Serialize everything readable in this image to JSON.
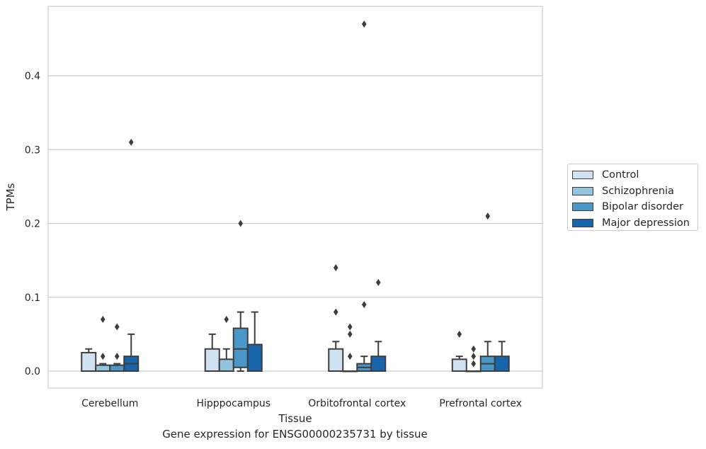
{
  "chart_data": {
    "type": "box",
    "xlabel": "Tissue",
    "ylabel": "TPMs",
    "ylim": [
      -0.023,
      0.495
    ],
    "yticks": [
      0.0,
      0.1,
      0.2,
      0.3,
      0.4
    ],
    "ytick_labels": [
      "0.0",
      "0.1",
      "0.2",
      "0.3",
      "0.4"
    ],
    "grid": true,
    "legend_placement": "right",
    "categories": [
      "Cerebellum",
      "Hipppocampus",
      "Orbitofrontal cortex",
      "Prefrontal cortex"
    ],
    "series": [
      {
        "name": "Control",
        "color": "#d0e1f2",
        "boxes": [
          {
            "whislo": 0.0,
            "q1": 0.0,
            "med": 0.0,
            "q3": 0.025,
            "whishi": 0.03,
            "fliers": []
          },
          {
            "whislo": 0.0,
            "q1": 0.0,
            "med": 0.0,
            "q3": 0.03,
            "whishi": 0.05,
            "fliers": []
          },
          {
            "whislo": 0.0,
            "q1": 0.0,
            "med": 0.0,
            "q3": 0.03,
            "whishi": 0.04,
            "fliers": [
              0.14,
              0.08
            ]
          },
          {
            "whislo": 0.0,
            "q1": 0.0,
            "med": 0.0,
            "q3": 0.016,
            "whishi": 0.02,
            "fliers": [
              0.05
            ]
          }
        ]
      },
      {
        "name": "Schizophrenia",
        "color": "#94c4df",
        "boxes": [
          {
            "whislo": 0.0,
            "q1": 0.0,
            "med": 0.0,
            "q3": 0.008,
            "whishi": 0.01,
            "fliers": [
              0.07,
              0.02
            ]
          },
          {
            "whislo": 0.0,
            "q1": 0.0,
            "med": 0.0,
            "q3": 0.016,
            "whishi": 0.03,
            "fliers": [
              0.07
            ]
          },
          {
            "whislo": 0.0,
            "q1": 0.0,
            "med": 0.0,
            "q3": 0.0,
            "whishi": 0.0,
            "fliers": [
              0.06,
              0.05,
              0.02
            ]
          },
          {
            "whislo": 0.0,
            "q1": 0.0,
            "med": 0.0,
            "q3": 0.0,
            "whishi": 0.0,
            "fliers": [
              0.03,
              0.02,
              0.01
            ]
          }
        ]
      },
      {
        "name": "Bipolar disorder",
        "color": "#4a98c9",
        "boxes": [
          {
            "whislo": 0.0,
            "q1": 0.0,
            "med": 0.0,
            "q3": 0.008,
            "whishi": 0.01,
            "fliers": [
              0.06,
              0.02
            ]
          },
          {
            "whislo": 0.0,
            "q1": 0.005,
            "med": 0.03,
            "q3": 0.058,
            "whishi": 0.08,
            "fliers": [
              0.2
            ]
          },
          {
            "whislo": 0.0,
            "q1": 0.0,
            "med": 0.005,
            "q3": 0.01,
            "whishi": 0.02,
            "fliers": [
              0.47,
              0.09
            ]
          },
          {
            "whislo": 0.0,
            "q1": 0.0,
            "med": 0.01,
            "q3": 0.02,
            "whishi": 0.04,
            "fliers": [
              0.21
            ]
          }
        ]
      },
      {
        "name": "Major depression",
        "color": "#1764ab",
        "boxes": [
          {
            "whislo": 0.0,
            "q1": 0.0,
            "med": 0.01,
            "q3": 0.02,
            "whishi": 0.05,
            "fliers": [
              0.31
            ]
          },
          {
            "whislo": 0.0,
            "q1": 0.0,
            "med": 0.0,
            "q3": 0.036,
            "whishi": 0.08,
            "fliers": []
          },
          {
            "whislo": 0.0,
            "q1": 0.0,
            "med": 0.0,
            "q3": 0.02,
            "whishi": 0.04,
            "fliers": [
              0.12
            ]
          },
          {
            "whislo": 0.0,
            "q1": 0.0,
            "med": 0.0,
            "q3": 0.02,
            "whishi": 0.04,
            "fliers": []
          }
        ]
      }
    ]
  },
  "caption": "Gene expression for ENSG00000235731 by tissue"
}
